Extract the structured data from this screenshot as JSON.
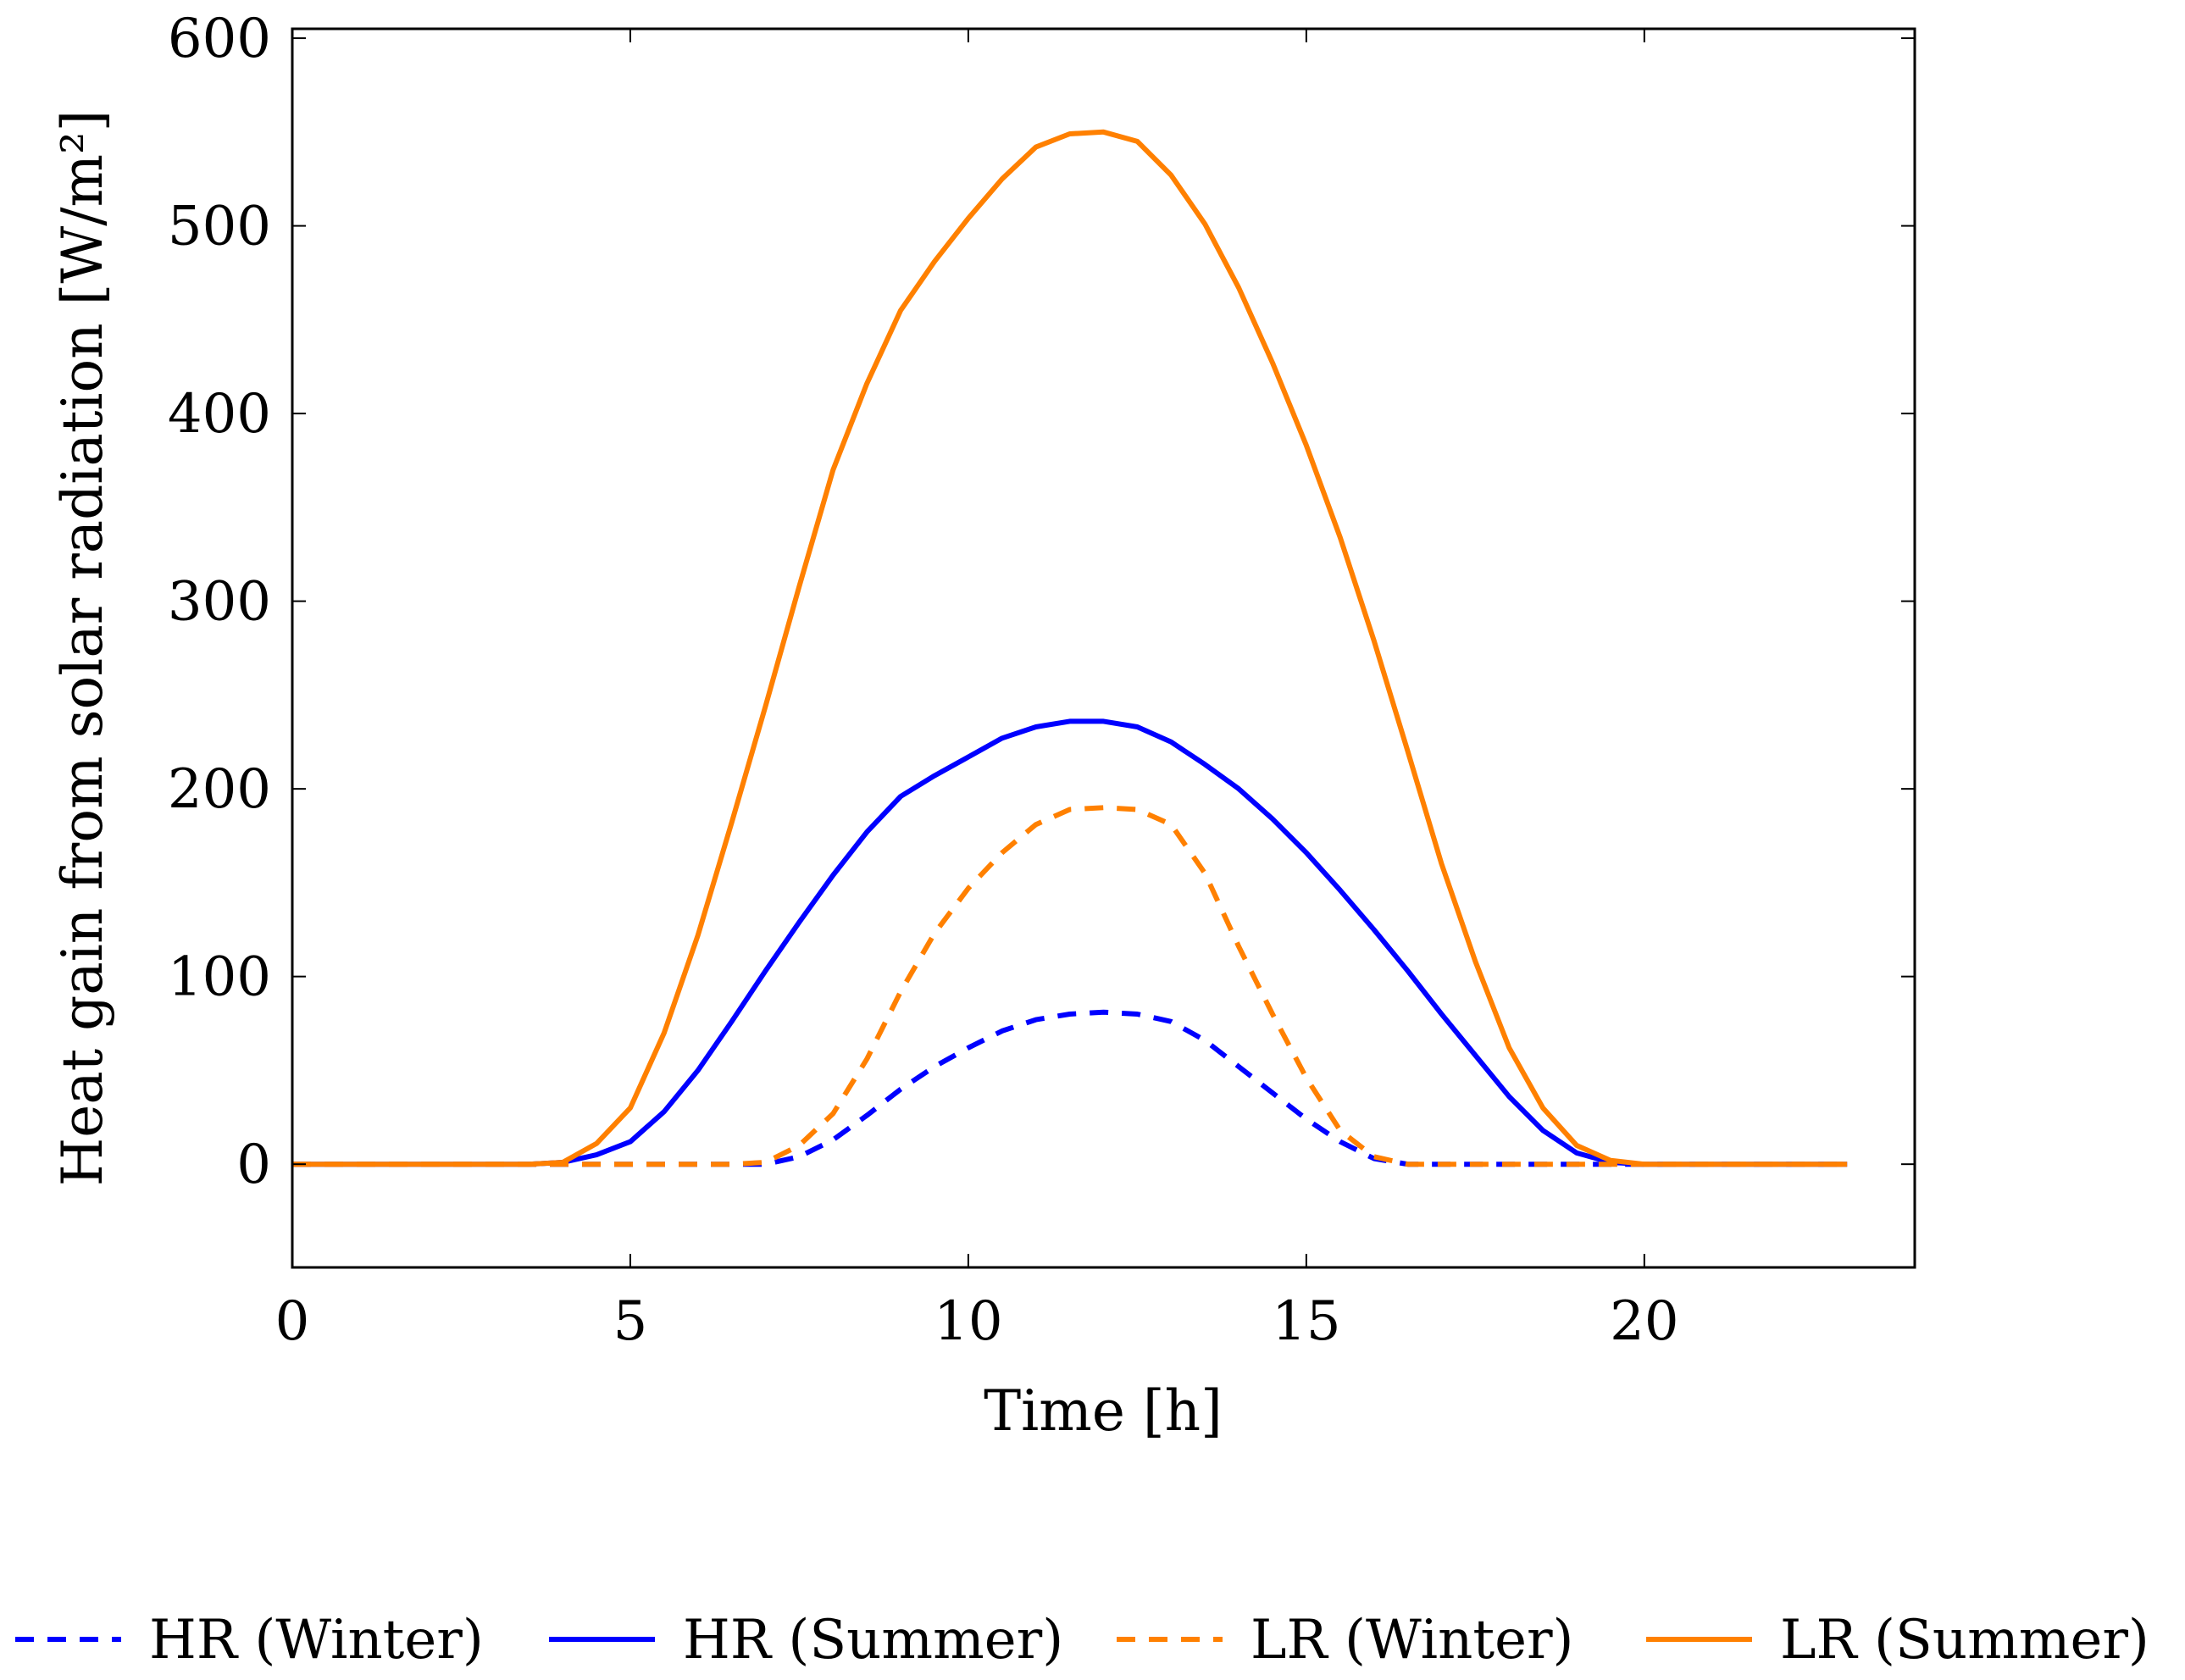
{
  "chart_data": {
    "type": "line",
    "title": "",
    "xlabel": "Time [h]",
    "ylabel": "Heat gain from solar radiation [W/m²]",
    "xlim": [
      0,
      24
    ],
    "ylim": [
      -55,
      605
    ],
    "xticks": [
      0,
      5,
      10,
      15,
      20
    ],
    "yticks": [
      0,
      100,
      200,
      300,
      400,
      500,
      600
    ],
    "grid": false,
    "legend_position": "bottom",
    "series": [
      {
        "name": "HR (Winter)",
        "color": "#0000ff",
        "style": "dashed",
        "x": [
          0,
          1,
          2,
          3,
          4,
          5,
          6,
          7,
          7.5,
          8,
          8.5,
          9,
          9.5,
          10,
          10.5,
          11,
          11.5,
          12,
          12.5,
          13,
          13.5,
          14,
          14.5,
          15,
          15.5,
          16,
          16.5,
          17,
          18,
          19,
          20,
          21,
          22,
          23
        ],
        "values": [
          0,
          0,
          0,
          0,
          0,
          0,
          0,
          0,
          4,
          13,
          26,
          40,
          52,
          62,
          71,
          77,
          80,
          81,
          80,
          76,
          66,
          52,
          38,
          24,
          12,
          3,
          0,
          0,
          0,
          0,
          0,
          0,
          0,
          0
        ]
      },
      {
        "name": "HR (Summer)",
        "color": "#0000ff",
        "style": "solid",
        "x": [
          0,
          1,
          2,
          3,
          3.5,
          4,
          4.5,
          5,
          5.5,
          6,
          6.5,
          7,
          7.5,
          8,
          8.5,
          9,
          9.5,
          10,
          10.5,
          11,
          11.5,
          12,
          12.5,
          13,
          13.5,
          14,
          14.5,
          15,
          15.5,
          16,
          16.5,
          17,
          17.5,
          18,
          18.5,
          19,
          19.5,
          20,
          21,
          22,
          23
        ],
        "values": [
          0,
          0,
          0,
          0,
          0,
          1,
          5,
          12,
          28,
          50,
          76,
          103,
          129,
          154,
          177,
          196,
          207,
          217,
          227,
          233,
          236,
          236,
          233,
          225,
          213,
          200,
          184,
          166,
          146,
          125,
          103,
          80,
          58,
          36,
          18,
          6,
          1,
          0,
          0,
          0,
          0
        ]
      },
      {
        "name": "LR (Winter)",
        "color": "#ff8000",
        "style": "dashed",
        "x": [
          0,
          1,
          2,
          3,
          4,
          5,
          6,
          6.5,
          7,
          7.5,
          8,
          8.5,
          9,
          9.5,
          10,
          10.5,
          11,
          11.5,
          12,
          12.5,
          13,
          13.5,
          14,
          14.5,
          15,
          15.5,
          16,
          16.5,
          17,
          18,
          19,
          20,
          21,
          22,
          23
        ],
        "values": [
          0,
          0,
          0,
          0,
          0,
          0,
          0,
          0,
          1,
          10,
          27,
          56,
          92,
          123,
          147,
          166,
          181,
          189,
          190,
          189,
          181,
          155,
          116,
          80,
          46,
          18,
          4,
          0,
          0,
          0,
          0,
          0,
          0,
          0,
          0
        ]
      },
      {
        "name": "LR (Summer)",
        "color": "#ff8000",
        "style": "solid",
        "x": [
          0,
          1,
          2,
          3,
          3.5,
          4,
          4.5,
          5,
          5.5,
          6,
          6.5,
          7,
          7.5,
          8,
          8.5,
          9,
          9.5,
          10,
          10.5,
          11,
          11.5,
          12,
          12.5,
          13,
          13.5,
          14,
          14.5,
          15,
          15.5,
          16,
          16.5,
          17,
          17.5,
          18,
          18.5,
          19,
          19.5,
          20,
          21,
          22,
          23
        ],
        "values": [
          0,
          0,
          0,
          0,
          0,
          1,
          11,
          30,
          70,
          122,
          182,
          244,
          308,
          370,
          416,
          455,
          481,
          504,
          525,
          542,
          549,
          550,
          545,
          527,
          501,
          467,
          427,
          383,
          334,
          279,
          220,
          160,
          108,
          62,
          30,
          10,
          2,
          0,
          0,
          0,
          0
        ]
      }
    ]
  }
}
